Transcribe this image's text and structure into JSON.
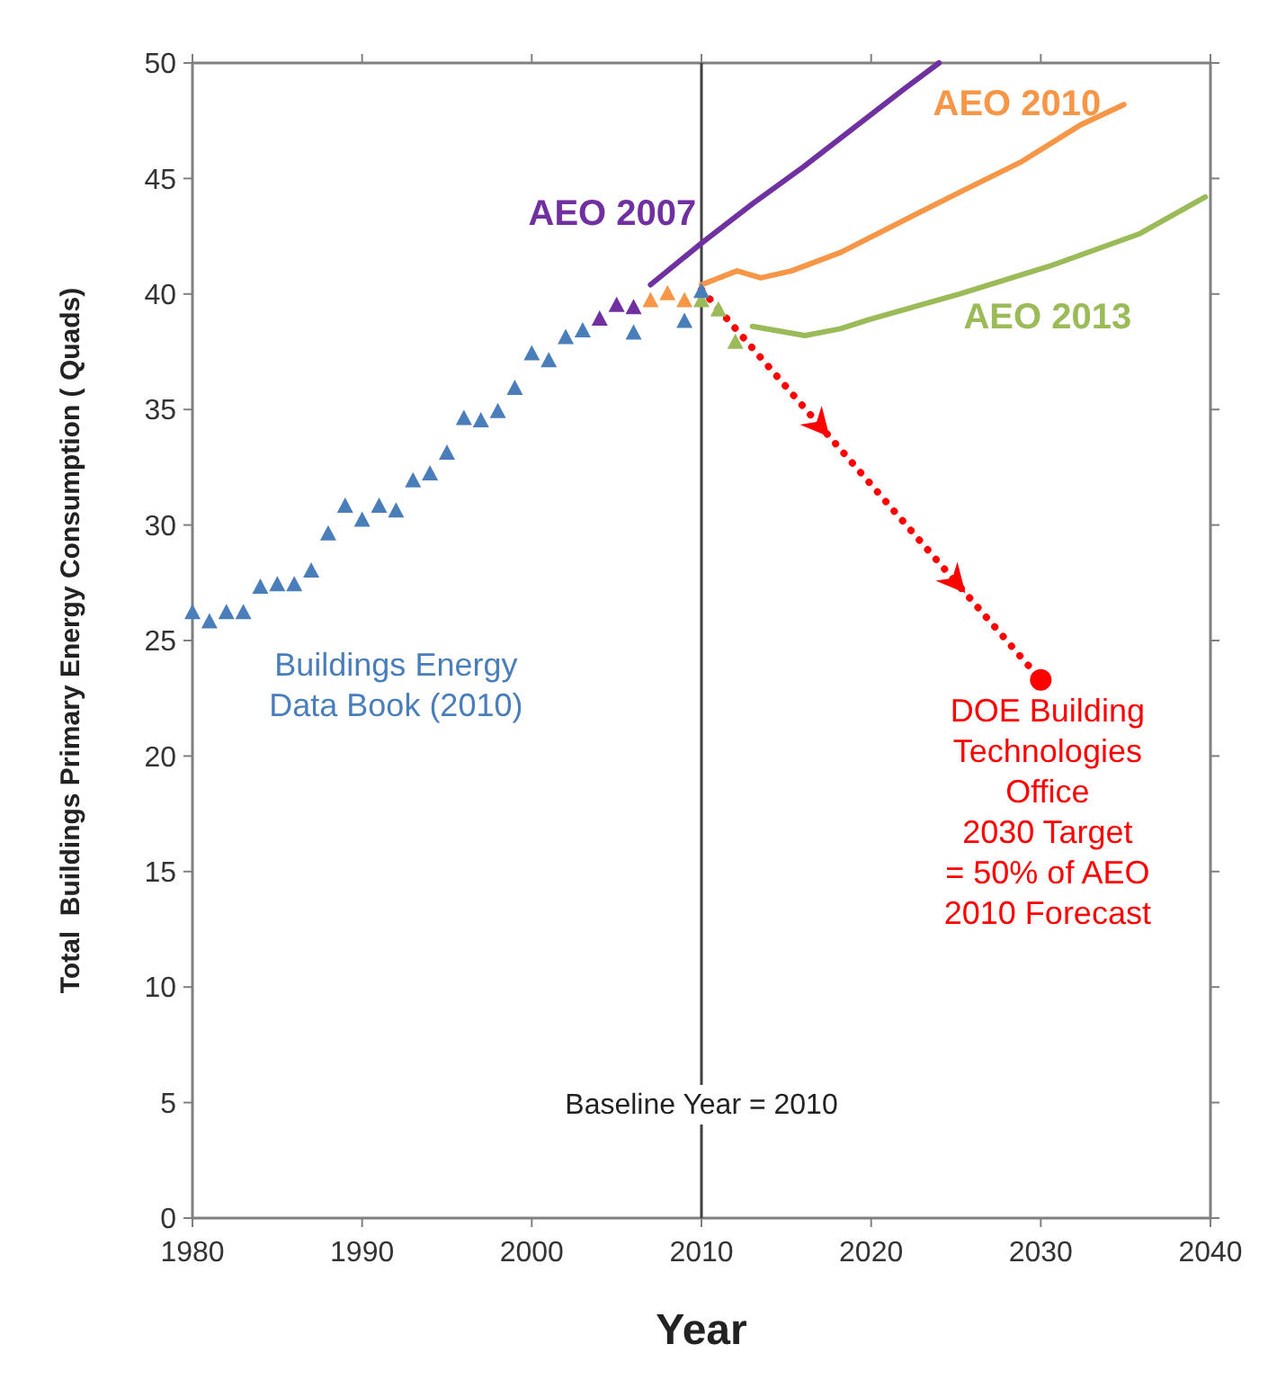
{
  "chart_data": {
    "type": "scatter",
    "xlabel": "Year",
    "ylabel": "Total  Buildings Primary Energy Consumption ( Quads)",
    "xlim": [
      1980,
      2040
    ],
    "ylim": [
      0,
      50
    ],
    "xticks": [
      1980,
      1990,
      2000,
      2010,
      2020,
      2030,
      2040
    ],
    "yticks": [
      0,
      5,
      10,
      15,
      20,
      25,
      30,
      35,
      40,
      45,
      50
    ],
    "grid": false,
    "marker": "triangle",
    "series": [
      {
        "name": "Buildings Energy\nData Book (2010)",
        "color": "#4a7ebb",
        "x": [
          1980,
          1981,
          1982,
          1983,
          1984,
          1985,
          1986,
          1987,
          1988,
          1989,
          1990,
          1991,
          1992,
          1993,
          1994,
          1995,
          1996,
          1997,
          1998,
          1999,
          2000,
          2001,
          2002,
          2003,
          2006,
          2009,
          2010
        ],
        "values": [
          26.2,
          25.8,
          26.2,
          26.2,
          27.3,
          27.4,
          27.4,
          28.0,
          29.6,
          30.8,
          30.2,
          30.8,
          30.6,
          31.9,
          32.2,
          33.1,
          34.6,
          34.5,
          34.9,
          35.9,
          37.4,
          37.1,
          38.1,
          38.4,
          38.3,
          38.8,
          40.1
        ]
      },
      {
        "color": "#7030a0",
        "x": [
          2004,
          2005,
          2006
        ],
        "values": [
          38.9,
          39.5,
          39.4
        ]
      },
      {
        "color": "#f79646",
        "x": [
          2007,
          2008,
          2009
        ],
        "values": [
          39.7,
          40.0,
          39.7
        ]
      },
      {
        "color": "#9bbb59",
        "x": [
          2010,
          2011,
          2012
        ],
        "values": [
          39.7,
          39.3,
          37.9
        ]
      },
      {
        "type": "line",
        "name": "AEO 2007",
        "color": "#7030a0",
        "marker": "none",
        "x": [
          2007,
          2010,
          2013,
          2016,
          2019,
          2022,
          2024
        ],
        "values": [
          40.4,
          42.2,
          43.9,
          45.5,
          47.2,
          48.9,
          50.0
        ]
      },
      {
        "type": "line",
        "name": "AEO 2010",
        "color": "#f79646",
        "marker": "none",
        "x": [
          2010,
          2012.1,
          2013.5,
          2015.3,
          2018.2,
          2021.7,
          2025.2,
          2028.8,
          2032.3,
          2034.9
        ],
        "values": [
          40.4,
          41.0,
          40.7,
          41.0,
          41.8,
          43.1,
          44.4,
          45.7,
          47.3,
          48.2
        ]
      },
      {
        "type": "line",
        "name": "AEO 2013",
        "color": "#9bbb59",
        "marker": "none",
        "x": [
          2013,
          2016.1,
          2018.2,
          2019.9,
          2025.2,
          2030.5,
          2035.8,
          2039.7
        ],
        "values": [
          38.6,
          38.2,
          38.5,
          38.9,
          40.0,
          41.2,
          42.6,
          44.2
        ]
      },
      {
        "type": "line",
        "name": "DOE Building\nTechnologies\nOffice\n2030 Target\n= 50% of AEO\n2010 Forecast",
        "color": "#ff0000",
        "line_style": "dotted",
        "marker": "circle",
        "x": [
          2010,
          2030
        ],
        "values": [
          40.2,
          23.3
        ]
      }
    ],
    "ref_lines": [
      {
        "axis": "x",
        "value": 2010,
        "label": "Baseline Year = 2010",
        "color": "#404040"
      }
    ]
  }
}
